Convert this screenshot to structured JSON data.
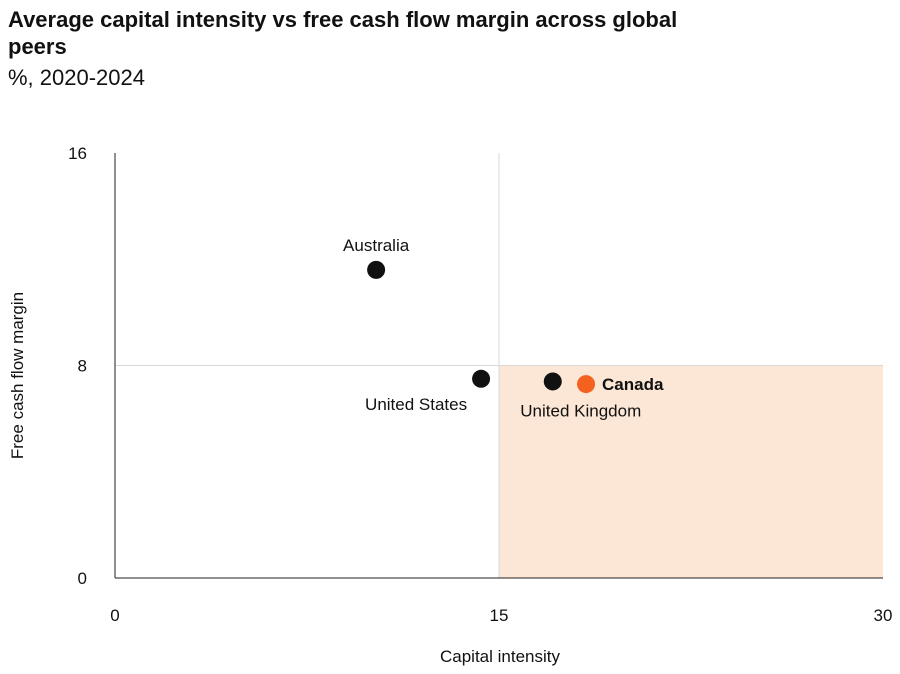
{
  "chart_data": {
    "type": "scatter",
    "title": "Average capital intensity vs free cash flow margin across global peers",
    "subtitle": "%, 2020-2024",
    "xlabel": "Capital intensity",
    "ylabel": "Free cash flow margin",
    "xlim": [
      0,
      30
    ],
    "ylim": [
      0,
      16
    ],
    "x_ticks": [
      "0",
      "15",
      "30"
    ],
    "y_ticks": [
      "0",
      "8",
      "16"
    ],
    "reference_lines": {
      "x": 15,
      "y": 8
    },
    "highlight_region": {
      "x": [
        15,
        30
      ],
      "y": [
        0,
        8
      ],
      "color": "#fce6d6"
    },
    "grid": false,
    "points": [
      {
        "label": "Australia",
        "x": 10.2,
        "y": 11.6,
        "color": "#111111",
        "highlight": false,
        "label_position": "above"
      },
      {
        "label": "United States",
        "x": 14.3,
        "y": 7.5,
        "color": "#111111",
        "highlight": false,
        "label_position": "below-left"
      },
      {
        "label": "United Kingdom",
        "x": 17.1,
        "y": 7.4,
        "color": "#111111",
        "highlight": false,
        "label_position": "below"
      },
      {
        "label": "Canada",
        "x": 18.4,
        "y": 7.3,
        "color": "#f5611e",
        "highlight": true,
        "label_position": "right"
      }
    ]
  }
}
